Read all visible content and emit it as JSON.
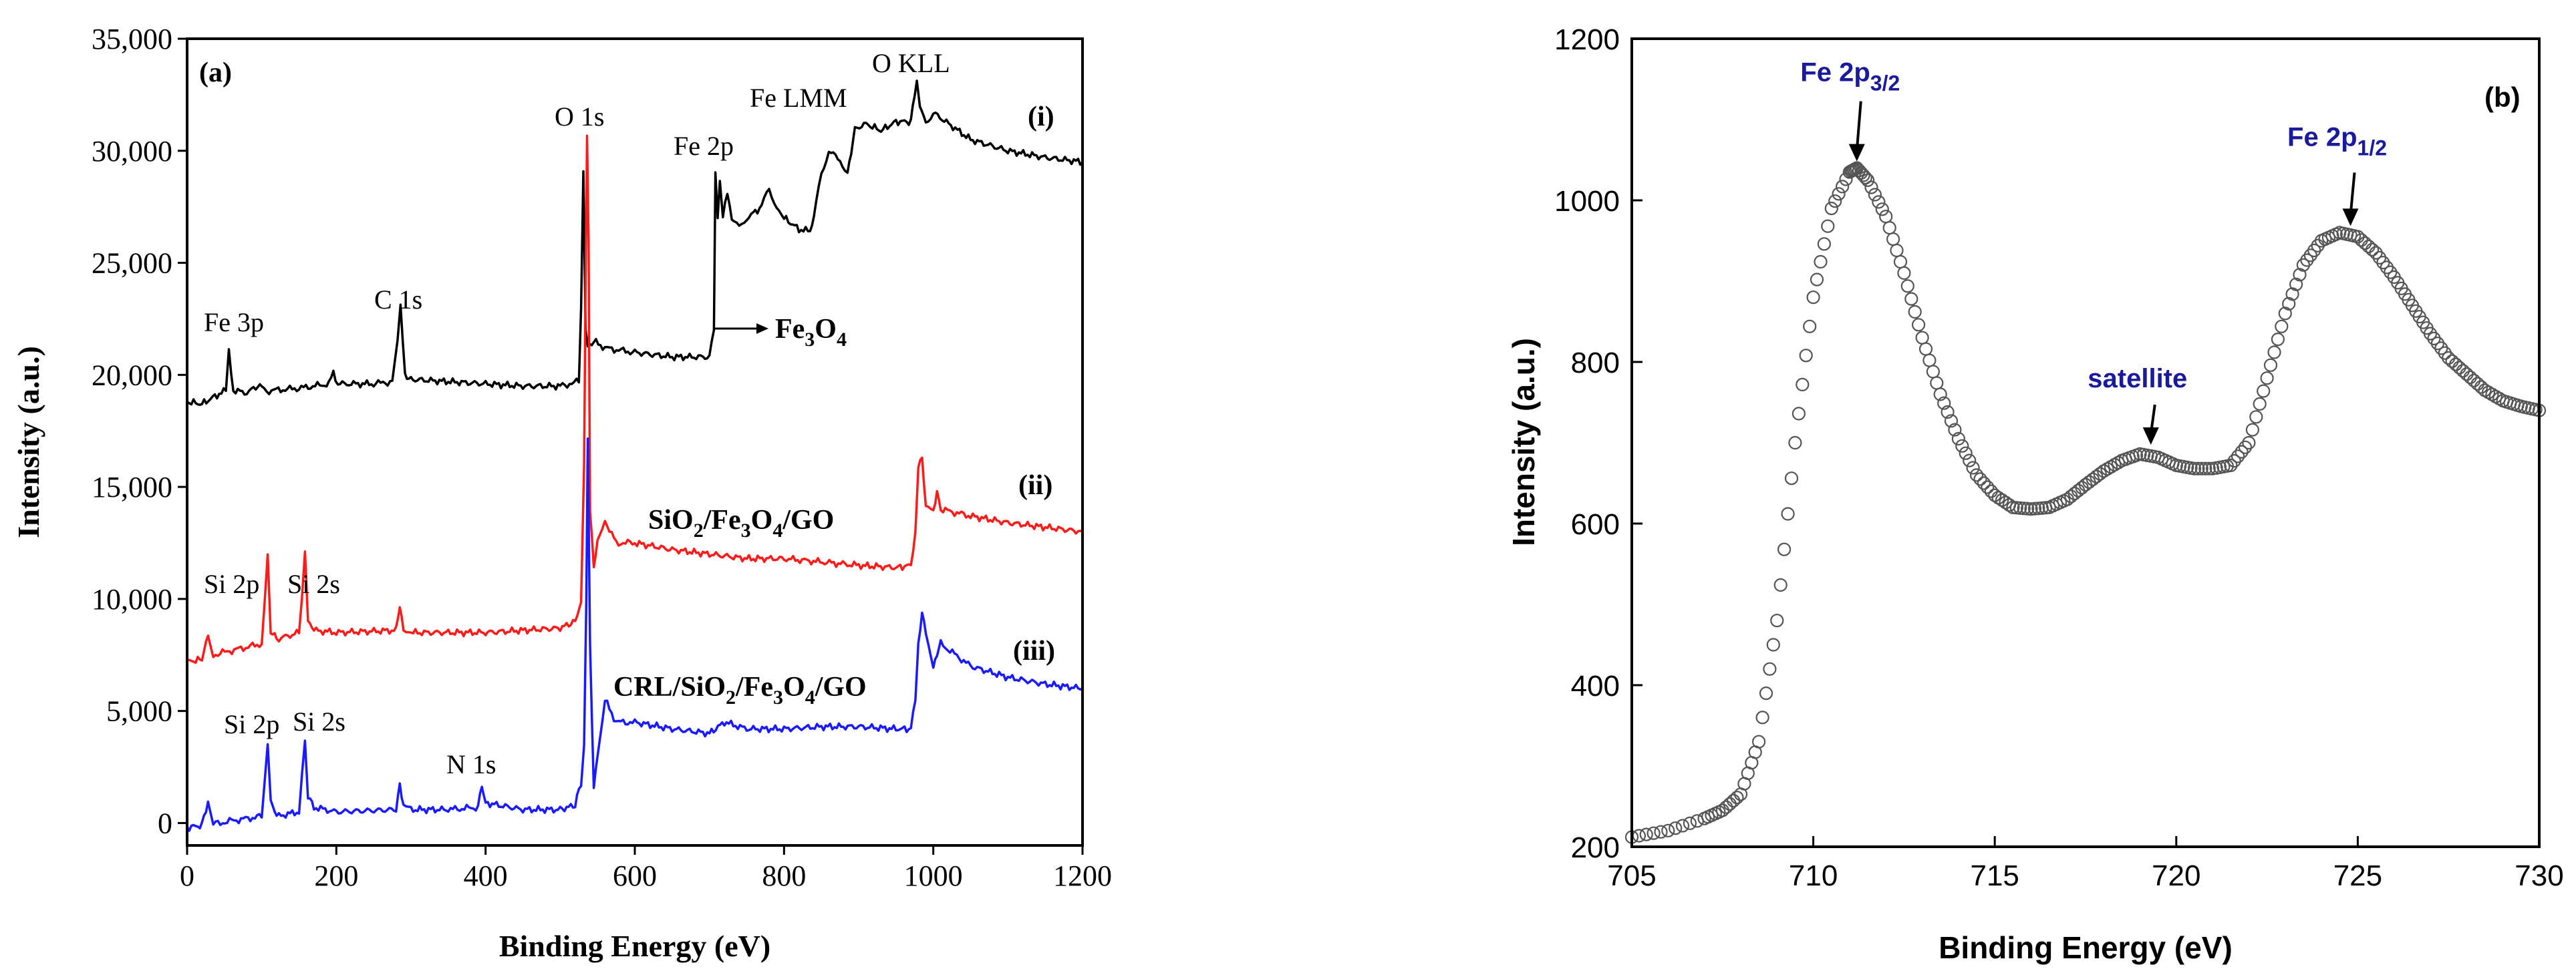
{
  "chart_data": [
    {
      "type": "line",
      "panel_label": "(a)",
      "xlabel": "Binding Energy (eV)",
      "ylabel": "Intensity (a.u.)",
      "xlim": [
        0,
        1200
      ],
      "ylim": [
        -1000,
        35000
      ],
      "xticks": [
        0,
        200,
        400,
        600,
        800,
        1000,
        1200
      ],
      "xtick_labels": [
        "0",
        "200",
        "400",
        "600",
        "800",
        "1000",
        "1200"
      ],
      "yticks": [
        0,
        5000,
        10000,
        15000,
        20000,
        25000,
        30000,
        35000
      ],
      "ytick_labels": [
        "0",
        "5,000",
        "10,000",
        "15,000",
        "20,000",
        "25,000",
        "30,000",
        "35,000"
      ],
      "series": [
        {
          "name": "Fe3O4",
          "roman": "(i)",
          "color": "#000000",
          "x": [
            0,
            20,
            40,
            52,
            56,
            62,
            80,
            95,
            100,
            110,
            150,
            190,
            196,
            202,
            250,
            275,
            282,
            286,
            292,
            300,
            350,
            400,
            450,
            500,
            525,
            528,
            531,
            534,
            537,
            545,
            560,
            600,
            650,
            700,
            706,
            708,
            711,
            714,
            718,
            724,
            730,
            740,
            750,
            770,
            780,
            790,
            800,
            820,
            835,
            840,
            850,
            860,
            875,
            885,
            890,
            895,
            910,
            930,
            950,
            970,
            975,
            978,
            982,
            990,
            1000,
            1050,
            1100,
            1150,
            1200
          ],
          "y": [
            18800,
            18700,
            19100,
            19300,
            21000,
            19300,
            19200,
            19500,
            19400,
            19300,
            19400,
            19600,
            20100,
            19600,
            19600,
            19700,
            21500,
            23000,
            20000,
            19800,
            19700,
            19600,
            19500,
            19500,
            19700,
            23000,
            29200,
            22000,
            21200,
            21500,
            21200,
            21000,
            20800,
            20800,
            22000,
            29000,
            27000,
            28500,
            27000,
            28200,
            27000,
            26500,
            27000,
            27500,
            28300,
            27500,
            27000,
            26500,
            26400,
            27000,
            29000,
            30000,
            29600,
            29000,
            30000,
            31000,
            31200,
            30900,
            31300,
            31300,
            32500,
            33200,
            32000,
            31300,
            31700,
            30500,
            30000,
            29700,
            29500
          ]
        },
        {
          "name": "SiO2/Fe3O4/GO",
          "roman": "(ii)",
          "color": "#ff1a1a",
          "x": [
            0,
            20,
            28,
            35,
            60,
            100,
            104,
            108,
            112,
            120,
            150,
            154,
            158,
            162,
            170,
            200,
            280,
            285,
            290,
            300,
            350,
            400,
            450,
            500,
            520,
            528,
            532,
            534,
            536,
            538,
            540,
            545,
            550,
            560,
            575,
            600,
            650,
            700,
            750,
            800,
            900,
            950,
            970,
            976,
            980,
            985,
            990,
            1000,
            1005,
            1010,
            1050,
            1100,
            1150,
            1200
          ],
          "y": [
            7200,
            7300,
            8400,
            7500,
            7700,
            8000,
            10000,
            12000,
            8600,
            8200,
            8500,
            10000,
            12000,
            9000,
            8600,
            8500,
            8600,
            9700,
            8700,
            8500,
            8500,
            8500,
            8600,
            8700,
            9000,
            9800,
            16000,
            24000,
            30600,
            26000,
            14000,
            11500,
            12500,
            13500,
            12500,
            12500,
            12200,
            12000,
            11800,
            11800,
            11500,
            11400,
            11500,
            13000,
            16000,
            16300,
            14000,
            14000,
            14800,
            14000,
            13700,
            13400,
            13200,
            13000
          ]
        },
        {
          "name": "CRL/SiO2/Fe3O4/GO",
          "roman": "(iii)",
          "color": "#1a1aff",
          "x": [
            0,
            20,
            28,
            35,
            60,
            100,
            104,
            108,
            112,
            120,
            150,
            154,
            158,
            162,
            170,
            200,
            280,
            285,
            290,
            300,
            350,
            390,
            395,
            400,
            450,
            500,
            520,
            528,
            532,
            535,
            537,
            540,
            545,
            550,
            560,
            575,
            600,
            650,
            700,
            720,
            750,
            800,
            850,
            900,
            950,
            970,
            976,
            980,
            985,
            990,
            1000,
            1005,
            1010,
            1050,
            1100,
            1150,
            1200
          ],
          "y": [
            -200,
            -100,
            1000,
            -50,
            100,
            300,
            1800,
            3400,
            1000,
            300,
            500,
            2200,
            3800,
            1200,
            700,
            500,
            600,
            1800,
            800,
            600,
            600,
            700,
            1700,
            900,
            600,
            600,
            800,
            1800,
            3500,
            10000,
            17000,
            8000,
            1500,
            3000,
            5500,
            4500,
            4500,
            4200,
            4000,
            4500,
            4200,
            4200,
            4300,
            4300,
            4200,
            4200,
            5500,
            8000,
            9300,
            8500,
            7000,
            7500,
            8000,
            7000,
            6500,
            6200,
            6000
          ]
        }
      ],
      "annotations": [
        "Fe 3p",
        "C 1s",
        "O 1s",
        "Fe 2p",
        "Fe LMM",
        "O KLL",
        "Si 2p",
        "Si 2s",
        "Si 2p",
        "Si 2s",
        "N 1s"
      ]
    },
    {
      "type": "scatter",
      "panel_label": "(b)",
      "xlabel": "Binding Energy (eV)",
      "ylabel": "Intensity (a.u.)",
      "xlim": [
        705,
        730
      ],
      "ylim": [
        200,
        1200
      ],
      "xticks": [
        705,
        710,
        715,
        720,
        725,
        730
      ],
      "xtick_labels": [
        "705",
        "710",
        "715",
        "720",
        "725",
        "730"
      ],
      "yticks": [
        200,
        400,
        600,
        800,
        1000,
        1200
      ],
      "ytick_labels": [
        "200",
        "400",
        "600",
        "800",
        "1000",
        "1200"
      ],
      "series": [
        {
          "name": "Fe 2p spectrum",
          "marker": "open-circle",
          "color": "#555555",
          "x": [
            705.0,
            706.0,
            707.0,
            707.5,
            708.0,
            708.5,
            709.0,
            709.5,
            710.0,
            710.5,
            711.0,
            711.2,
            711.5,
            712.0,
            712.5,
            713.0,
            713.5,
            714.0,
            714.5,
            715.0,
            715.5,
            716.0,
            716.5,
            717.0,
            717.5,
            718.0,
            718.5,
            719.0,
            719.5,
            720.0,
            720.5,
            721.0,
            721.5,
            722.0,
            722.5,
            723.0,
            723.5,
            724.0,
            724.5,
            725.0,
            725.5,
            726.0,
            726.5,
            727.0,
            727.5,
            728.0,
            728.5,
            729.0,
            729.5,
            730.0
          ],
          "y": [
            212,
            220,
            235,
            245,
            265,
            330,
            480,
            700,
            880,
            990,
            1035,
            1040,
            1025,
            980,
            910,
            830,
            760,
            705,
            660,
            635,
            620,
            618,
            620,
            630,
            648,
            665,
            678,
            686,
            682,
            672,
            668,
            668,
            672,
            700,
            780,
            860,
            920,
            950,
            960,
            955,
            935,
            905,
            870,
            835,
            805,
            785,
            765,
            752,
            745,
            740
          ]
        }
      ],
      "annotations": {
        "peak1": {
          "text": "Fe 2p",
          "sub": "3/2",
          "x": 711.2,
          "y": 1040
        },
        "satellite": {
          "text": "satellite",
          "x": 719.3,
          "y": 686
        },
        "peak2": {
          "text": "Fe 2p",
          "sub": "1/2",
          "x": 724.8,
          "y": 960
        }
      }
    }
  ],
  "labels_a": {
    "fe3p": "Fe 3p",
    "c1s": "C 1s",
    "o1s": "O 1s",
    "fe2p": "Fe 2p",
    "felmm": "Fe LMM",
    "okll": "O KLL",
    "si2p_ii": "Si 2p",
    "si2s_ii": "Si 2s",
    "si2p_iii": "Si 2p",
    "si2s_iii": "Si 2s",
    "n1s": "N 1s",
    "fe3o4_main": "Fe",
    "fe3o4_sub1": "3",
    "fe3o4_mid": "O",
    "fe3o4_sub2": "4",
    "sample_ii_parts": [
      "SiO",
      "2",
      "/Fe",
      "3",
      "O",
      "4",
      "/GO"
    ],
    "sample_iii_parts": [
      "CRL/SiO",
      "2",
      "/Fe",
      "3",
      "O",
      "4",
      "/GO"
    ]
  }
}
